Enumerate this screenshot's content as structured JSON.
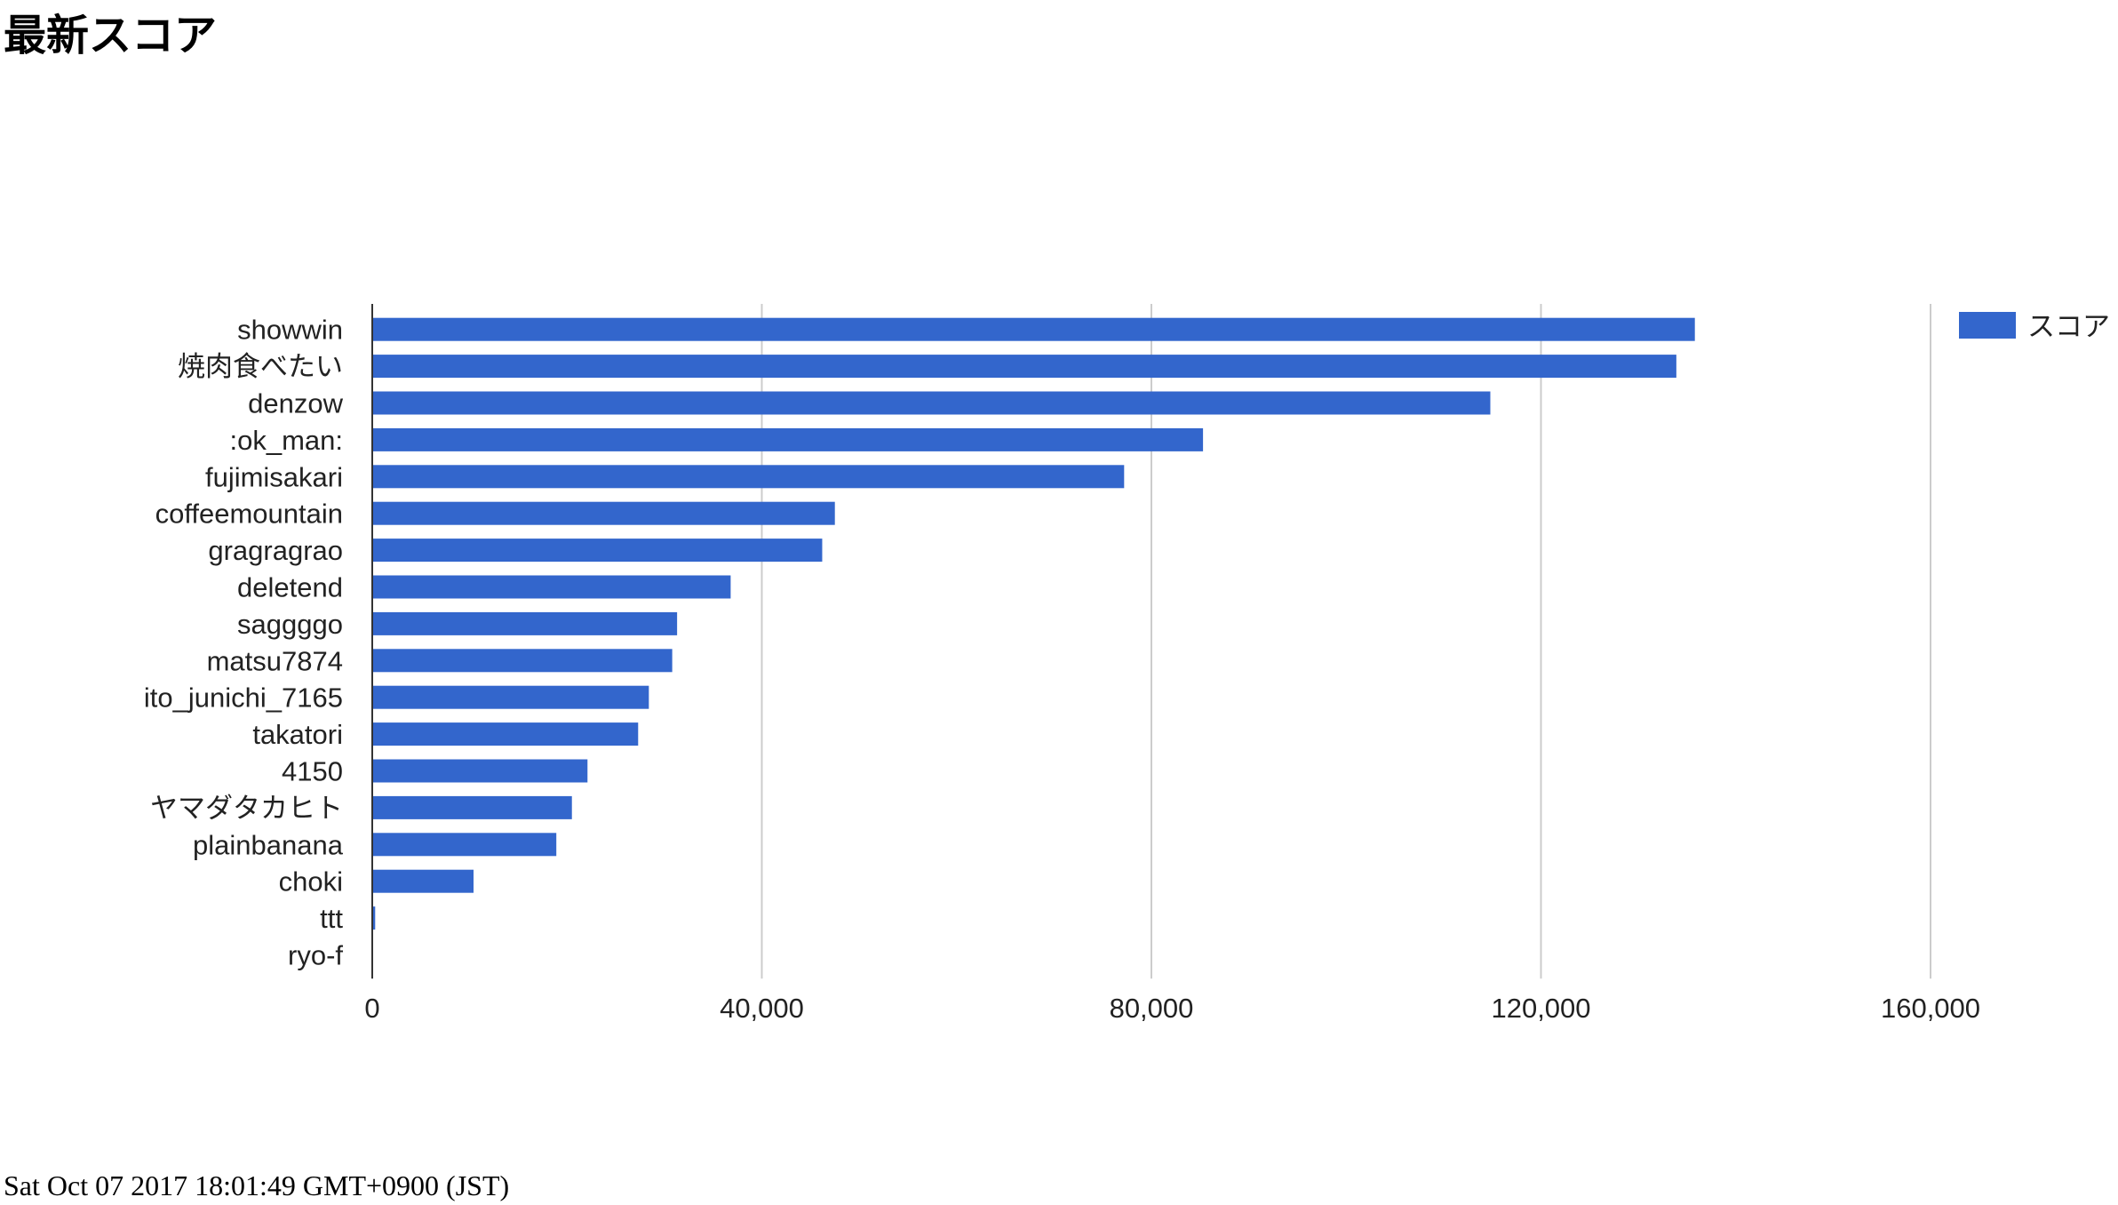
{
  "page": {
    "title": "最新スコア",
    "timestamp": "Sat Oct 07 2017 18:01:49 GMT+0900 (JST)"
  },
  "chart_data": {
    "type": "bar",
    "orientation": "horizontal",
    "title": "",
    "xlabel": "",
    "ylabel": "",
    "categories": [
      "showwin",
      "焼肉食べたい",
      "denzow",
      ":ok_man:",
      "fujimisakari",
      "coffeemountain",
      "gragragrao",
      "deletend",
      "saggggo",
      "matsu7874",
      "ito_junichi_7165",
      "takatori",
      "4150",
      "ヤマダタカヒト",
      "plainbanana",
      "choki",
      "ttt",
      "ryo-f"
    ],
    "series": [
      {
        "name": "スコア",
        "color": "#3366cc",
        "values": [
          135800,
          133900,
          114800,
          85300,
          77200,
          47500,
          46200,
          36800,
          31300,
          30800,
          28400,
          27300,
          22100,
          20500,
          18900,
          10400,
          300,
          0
        ]
      }
    ],
    "xlim": [
      0,
      160000
    ],
    "x_ticks": [
      0,
      40000,
      80000,
      120000,
      160000
    ],
    "x_tick_labels": [
      "0",
      "40,000",
      "80,000",
      "120,000",
      "160,000"
    ],
    "grid": true,
    "legend_position": "top-right"
  }
}
